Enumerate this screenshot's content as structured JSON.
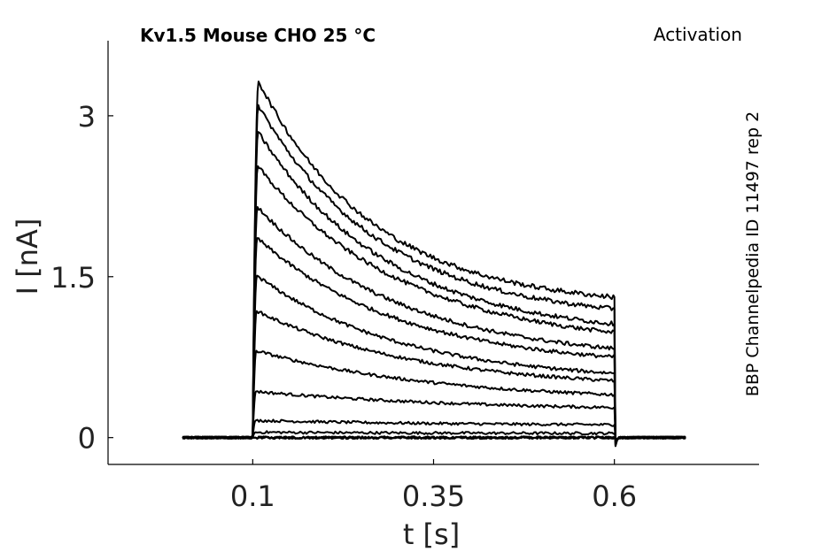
{
  "chart_data": {
    "type": "line",
    "title": "Kv1.5  Mouse  CHO  25 °C",
    "protocol": "Activation",
    "source": "BBP Channelpedia ID 11497 rep 2",
    "xlabel": "t [s]",
    "ylabel": "I [nA]",
    "xlim": [
      -0.1,
      0.8
    ],
    "ylim": [
      -0.25,
      3.7
    ],
    "xticks": [
      0.1,
      0.35,
      0.6
    ],
    "xtick_labels": [
      "0.1",
      "0.35",
      "0.6"
    ],
    "yticks": [
      0,
      1.5,
      3
    ],
    "ytick_labels": [
      "0",
      "1.5",
      "3"
    ],
    "grid": false,
    "legend": "none",
    "baseline_window": [
      0.003,
      0.7
    ],
    "pulse_window": [
      0.1,
      0.6
    ],
    "series_encoding": "sweep: [peak_current_nA, current_at_pulse_end_nA, decay_time_constant_s]",
    "sweeps": [
      [
        0.0,
        0.0,
        0.2
      ],
      [
        0.0,
        0.0,
        0.2
      ],
      [
        0.0,
        0.0,
        0.2
      ],
      [
        0.05,
        0.04,
        0.3
      ],
      [
        0.16,
        0.12,
        0.3
      ],
      [
        0.43,
        0.28,
        0.3
      ],
      [
        0.81,
        0.4,
        0.25
      ],
      [
        1.18,
        0.53,
        0.22
      ],
      [
        1.51,
        0.6,
        0.2
      ],
      [
        1.86,
        0.75,
        0.2
      ],
      [
        2.15,
        0.83,
        0.2
      ],
      [
        2.53,
        0.98,
        0.2
      ],
      [
        2.85,
        1.06,
        0.18
      ],
      [
        3.1,
        1.2,
        0.17
      ],
      [
        3.32,
        1.31,
        0.16
      ]
    ]
  }
}
